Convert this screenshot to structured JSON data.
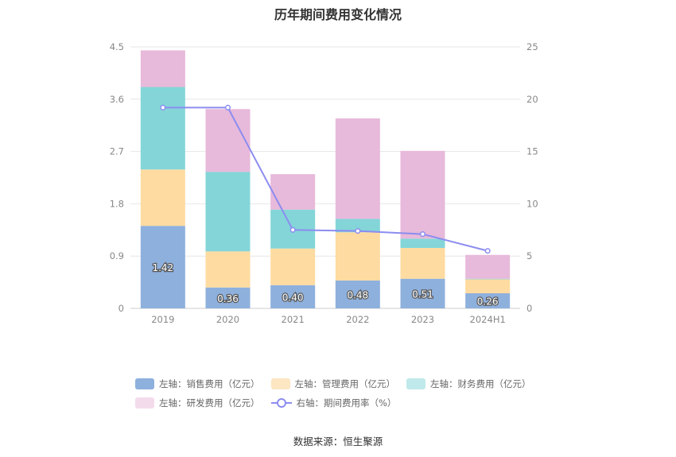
{
  "chart_data": {
    "type": "bar",
    "stacked": true,
    "title": "历年期间费用变化情况",
    "categories": [
      "2019",
      "2020",
      "2021",
      "2022",
      "2023",
      "2024H1"
    ],
    "left_axis": {
      "min": 0,
      "max": 4.5,
      "ticks": [
        "0",
        "0.9",
        "1.8",
        "2.7",
        "3.6",
        "4.5"
      ]
    },
    "right_axis": {
      "min": 0,
      "max": 25,
      "ticks": [
        "0",
        "5",
        "10",
        "15",
        "20",
        "25"
      ]
    },
    "series": [
      {
        "name": "左轴：销售费用（亿元）",
        "color": "#8eb0dd",
        "values": [
          1.42,
          0.36,
          0.4,
          0.48,
          0.51,
          0.26
        ],
        "labels": [
          "1.42",
          "0.36",
          "0.40",
          "0.48",
          "0.51",
          "0.26"
        ]
      },
      {
        "name": "左轴：管理费用（亿元）",
        "color": "#fedba0",
        "legend_color": "#fde6c2",
        "values": [
          0.97,
          0.62,
          0.63,
          0.83,
          0.53,
          0.24
        ]
      },
      {
        "name": "左轴：财务费用（亿元）",
        "color": "#83d5d8",
        "legend_color": "#bfe9ea",
        "values": [
          1.42,
          1.37,
          0.67,
          0.23,
          0.16,
          0.01
        ]
      },
      {
        "name": "左轴：研发费用（亿元）",
        "color": "#e7b9da",
        "legend_color": "#f3dbec",
        "values": [
          0.63,
          1.08,
          0.61,
          1.73,
          1.51,
          0.41
        ]
      }
    ],
    "line_series": {
      "name": "右轴：期间费用率（%）",
      "color": "#8c8cf0",
      "axis": "right",
      "values": [
        19.2,
        19.2,
        7.5,
        7.4,
        7.1,
        5.5
      ]
    },
    "source": "数据来源：恒生聚源"
  }
}
